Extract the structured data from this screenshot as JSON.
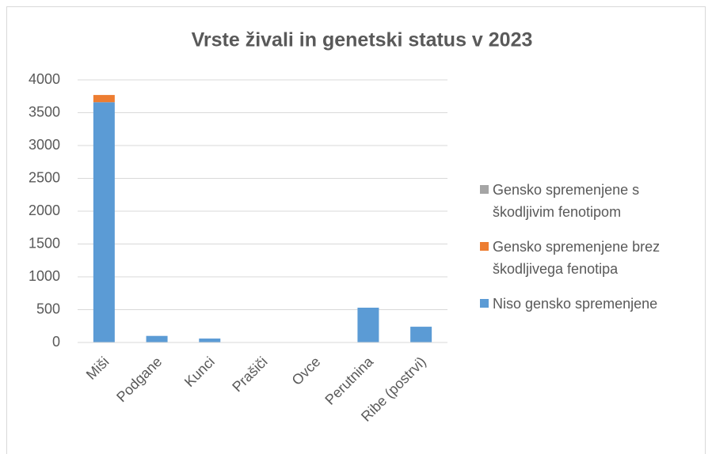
{
  "chart_data": {
    "type": "stacked_bar",
    "title": "Vrste živali in genetski status v 2023",
    "categories": [
      "Miši",
      "Podgane",
      "Kunci",
      "Prašiči",
      "Ovce",
      "Perutnina",
      "Ribe (postrvi)"
    ],
    "series": [
      {
        "name": "Niso gensko spremenjene",
        "color": "#5b9bd5",
        "values": [
          3660,
          100,
          60,
          5,
          0,
          530,
          240
        ]
      },
      {
        "name": "Gensko spremenjene brez škodljivega fenotipa",
        "color": "#ed7d31",
        "values": [
          110,
          0,
          0,
          0,
          0,
          0,
          0
        ]
      },
      {
        "name": "Gensko spremenjene s škodljivim fenotipom",
        "color": "#a5a5a5",
        "values": [
          0,
          0,
          0,
          0,
          0,
          0,
          0
        ]
      }
    ],
    "ylim": [
      0,
      4000
    ],
    "yticks": [
      0,
      500,
      1000,
      1500,
      2000,
      2500,
      3000,
      3500,
      4000
    ],
    "grid": true,
    "legend": "right"
  }
}
